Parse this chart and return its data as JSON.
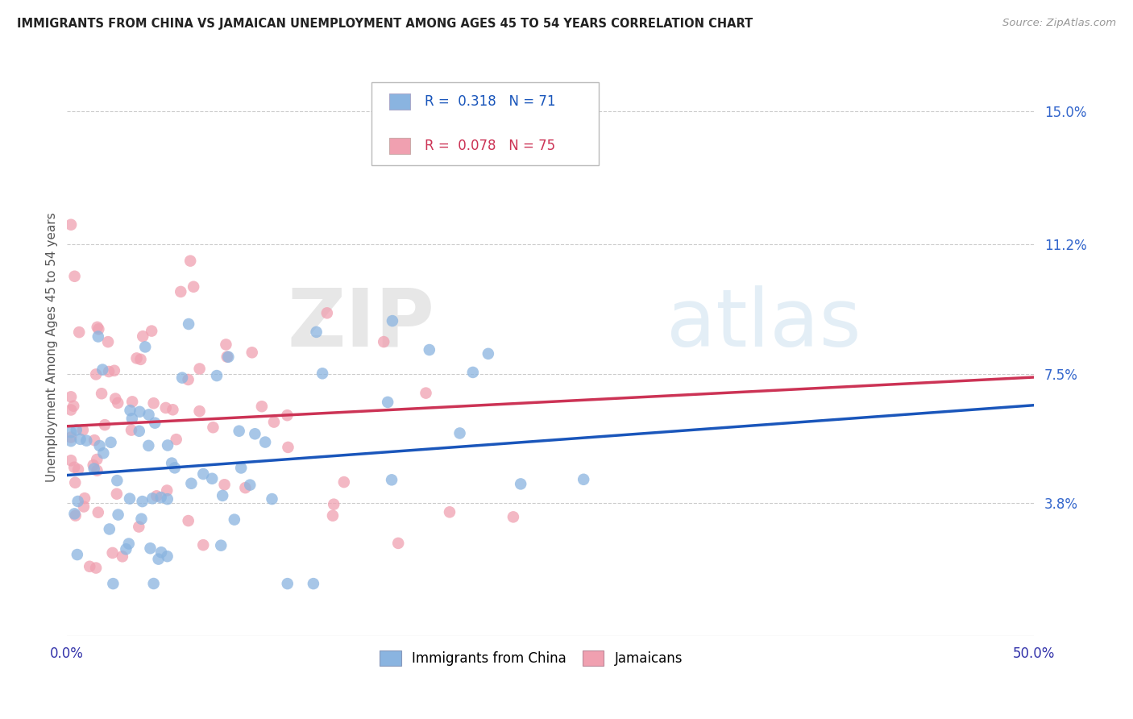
{
  "title": "IMMIGRANTS FROM CHINA VS JAMAICAN UNEMPLOYMENT AMONG AGES 45 TO 54 YEARS CORRELATION CHART",
  "source": "Source: ZipAtlas.com",
  "ylabel": "Unemployment Among Ages 45 to 54 years",
  "xlim": [
    0.0,
    0.5
  ],
  "ylim": [
    0.0,
    0.165
  ],
  "y_tick_labels_right": [
    "3.8%",
    "7.5%",
    "11.2%",
    "15.0%"
  ],
  "y_ticks_right": [
    0.038,
    0.075,
    0.112,
    0.15
  ],
  "color_china": "#8ab4e0",
  "color_jamaica": "#f0a0b0",
  "color_china_line": "#1a56bb",
  "color_jamaica_line": "#cc3355",
  "R_china": 0.318,
  "N_china": 71,
  "R_jamaica": 0.078,
  "N_jamaica": 75,
  "china_line_x0": 0.0,
  "china_line_x1": 0.5,
  "china_line_y0": 0.046,
  "china_line_y1": 0.066,
  "jamaica_line_x0": 0.0,
  "jamaica_line_x1": 0.5,
  "jamaica_line_y0": 0.06,
  "jamaica_line_y1": 0.074
}
